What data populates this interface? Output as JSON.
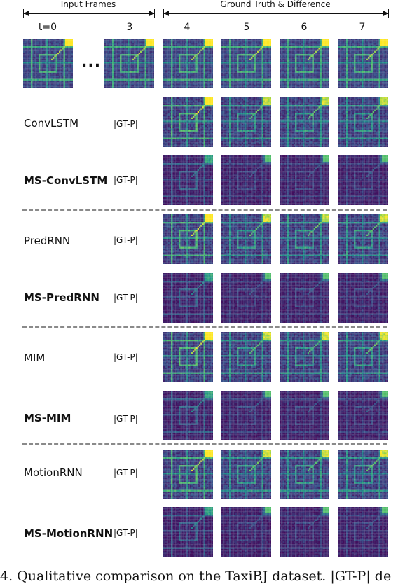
{
  "header": {
    "input_frames": "Input Frames",
    "ground_truth": "Ground Truth & Difference"
  },
  "timesteps": [
    "t=0",
    "3",
    "4",
    "5",
    "6",
    "7"
  ],
  "ellipsis": "...",
  "gt_label": "|GT-P|",
  "models": [
    {
      "name": "ConvLSTM",
      "bold": false
    },
    {
      "name": "MS-ConvLSTM",
      "bold": true
    },
    {
      "name": "PredRNN",
      "bold": false
    },
    {
      "name": "MS-PredRNN",
      "bold": true
    },
    {
      "name": "MIM",
      "bold": false
    },
    {
      "name": "MS-MIM",
      "bold": true
    },
    {
      "name": "MotionRNN",
      "bold": false
    },
    {
      "name": "MS-MotionRNN",
      "bold": true
    }
  ],
  "colors": {
    "viridis_low": "#440154",
    "viridis_mid": "#21918c",
    "viridis_high": "#fde725",
    "separator": "#8a8a8a"
  },
  "caption": "4. Qualitative comparison on the TaxiBJ dataset. |GT-P| de"
}
